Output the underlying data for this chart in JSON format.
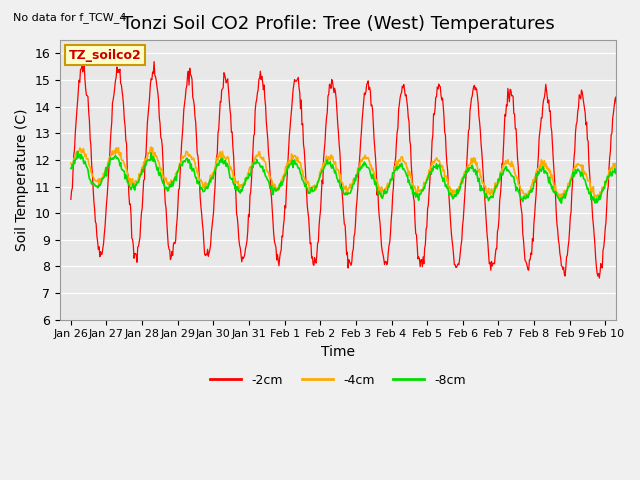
{
  "title": "Tonzi Soil CO2 Profile: Tree (West) Temperatures",
  "subtitle": "No data for f_TCW_4",
  "xlabel": "Time",
  "ylabel": "Soil Temperature (C)",
  "ylim": [
    6.0,
    16.5
  ],
  "yticks": [
    6.0,
    7.0,
    8.0,
    9.0,
    10.0,
    11.0,
    12.0,
    13.0,
    14.0,
    15.0,
    16.0
  ],
  "xtick_labels": [
    "Jan 26",
    "Jan 27",
    "Jan 28",
    "Jan 29",
    "Jan 30",
    "Jan 31",
    "Feb 1",
    "Feb 2",
    "Feb 3",
    "Feb 4",
    "Feb 5",
    "Feb 6",
    "Feb 7",
    "Feb 8",
    "Feb 9",
    "Feb 10"
  ],
  "legend_label": "TZ_soilco2",
  "line_2cm_color": "#ff0000",
  "line_4cm_color": "#ffaa00",
  "line_8cm_color": "#00dd00",
  "fig_facecolor": "#f0f0f0",
  "ax_facecolor": "#e8e8e8",
  "legend_box_facecolor": "#ffffcc",
  "legend_box_edgecolor": "#cc9900",
  "title_fontsize": 13,
  "axis_label_fontsize": 10,
  "tick_fontsize": 9
}
